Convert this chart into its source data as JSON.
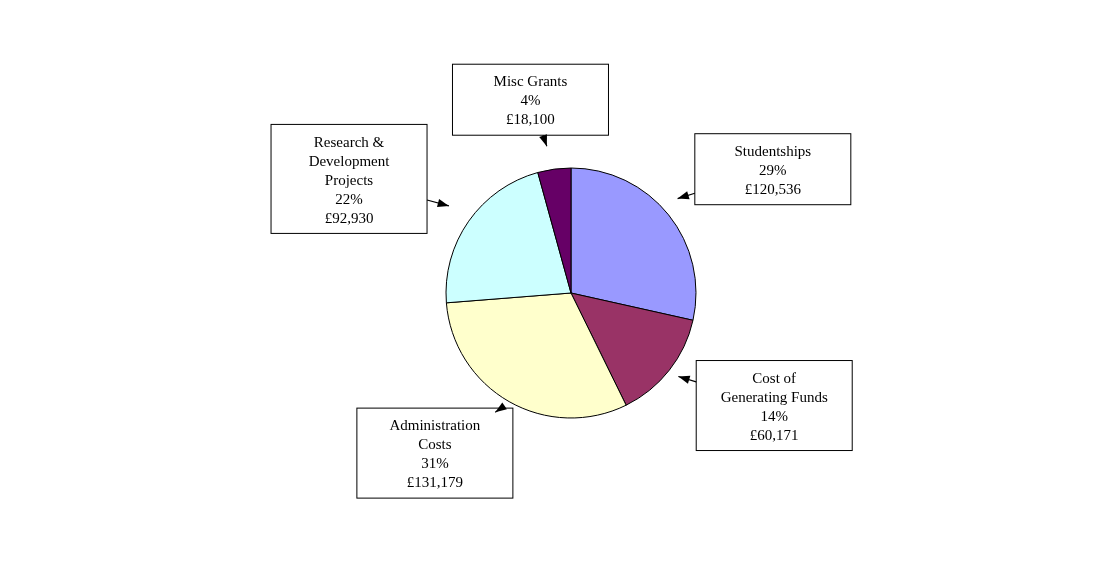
{
  "chart_data": {
    "type": "pie",
    "categories": [
      "Studentships",
      "Cost of Generating Funds",
      "Administration Costs",
      "Research & Development Projects",
      "Misc Grants"
    ],
    "values": [
      120536,
      60171,
      131179,
      92930,
      18100
    ],
    "colors": [
      "#9999ff",
      "#993366",
      "#ffffcc",
      "#ccffff",
      "#660066"
    ],
    "value_labels": [
      "29%\n£120,536",
      "14%\n£60,171",
      "31%\n£131,179",
      "22%\n£92,930",
      "4%\n£18,100"
    ],
    "legend": false
  }
}
